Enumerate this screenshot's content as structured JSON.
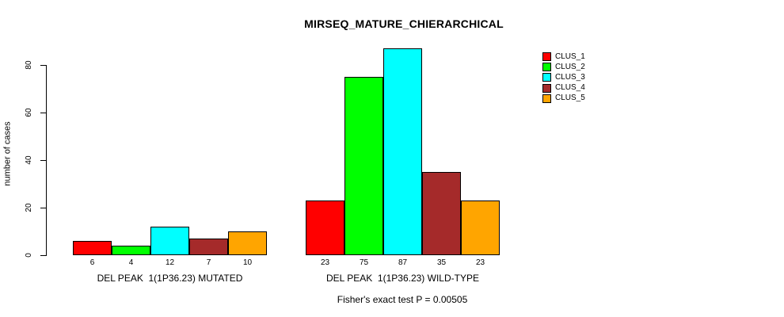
{
  "chart_data": {
    "type": "bar",
    "title": "MIRSEQ_MATURE_CHIERARCHICAL",
    "ylabel": "number of cases",
    "xlabel": "",
    "ylim": [
      0,
      87
    ],
    "yticks": [
      0,
      20,
      40,
      60,
      80
    ],
    "grid": false,
    "legend_position": "right-outside",
    "bar_value_labels_shown": true,
    "categories": [
      "DEL PEAK  1(1P36.23) MUTATED",
      "DEL PEAK  1(1P36.23) WILD-TYPE"
    ],
    "series": [
      {
        "name": "CLUS_1",
        "color": "#FF0000",
        "values": [
          6,
          23
        ]
      },
      {
        "name": "CLUS_2",
        "color": "#00FF00",
        "values": [
          4,
          75
        ]
      },
      {
        "name": "CLUS_3",
        "color": "#00FFFF",
        "values": [
          12,
          87
        ]
      },
      {
        "name": "CLUS_4",
        "color": "#A52A2A",
        "values": [
          7,
          35
        ]
      },
      {
        "name": "CLUS_5",
        "color": "#FFA500",
        "values": [
          10,
          23
        ]
      }
    ],
    "annotation": "Fisher's exact test P = 0.00505",
    "colors": {
      "background": "#FFFFFF",
      "axis": "#000000",
      "text": "#000000"
    }
  }
}
